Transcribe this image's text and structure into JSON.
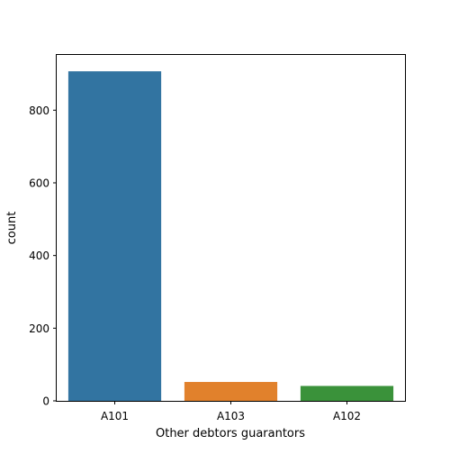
{
  "chart_data": {
    "type": "bar",
    "title": "",
    "xlabel": "Other debtors  guarantors",
    "ylabel": "count",
    "categories": [
      "A101",
      "A103",
      "A102"
    ],
    "values": [
      907,
      52,
      41
    ],
    "colors": [
      "#3274a1",
      "#e1812c",
      "#3a923a"
    ],
    "ylim": [
      0,
      952
    ],
    "yticks": [
      0,
      200,
      400,
      600,
      800
    ],
    "grid": false,
    "legend": "none"
  }
}
